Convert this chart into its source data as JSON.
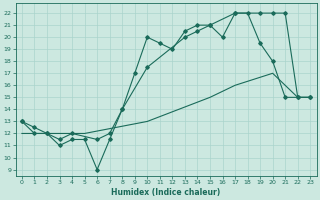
{
  "xlabel": "Humidex (Indice chaleur)",
  "bg_color": "#cce8e0",
  "line_color": "#1a6b5a",
  "grid_color": "#aad4cc",
  "xlim": [
    -0.5,
    23.5
  ],
  "ylim": [
    8.5,
    22.8
  ],
  "yticks": [
    9,
    10,
    11,
    12,
    13,
    14,
    15,
    16,
    17,
    18,
    19,
    20,
    21,
    22
  ],
  "xticks": [
    0,
    1,
    2,
    3,
    4,
    5,
    6,
    7,
    8,
    9,
    10,
    11,
    12,
    13,
    14,
    15,
    16,
    17,
    18,
    19,
    20,
    21,
    22,
    23
  ],
  "line1_x": [
    0,
    1,
    2,
    3,
    4,
    5,
    6,
    7,
    8,
    9,
    10,
    11,
    12,
    13,
    14,
    15,
    16,
    17,
    18,
    19,
    20,
    21,
    22,
    23
  ],
  "line1_y": [
    13,
    12,
    12,
    11,
    11.5,
    11.5,
    9,
    11.5,
    14,
    17,
    20,
    19.5,
    19,
    20.5,
    21,
    21,
    20,
    22,
    22,
    19.5,
    18,
    15,
    15,
    15
  ],
  "line2_x": [
    0,
    1,
    2,
    3,
    4,
    6,
    7,
    8,
    10,
    13,
    14,
    15,
    17,
    19,
    20,
    21,
    22,
    23
  ],
  "line2_y": [
    13,
    12.5,
    12,
    11.5,
    12,
    11.5,
    12,
    14,
    17.5,
    20,
    20.5,
    21,
    22,
    22,
    22,
    22,
    15,
    15
  ],
  "line3_x": [
    0,
    5,
    10,
    15,
    17,
    20,
    22,
    23
  ],
  "line3_y": [
    12,
    12,
    13,
    15,
    16,
    17,
    15,
    15
  ]
}
